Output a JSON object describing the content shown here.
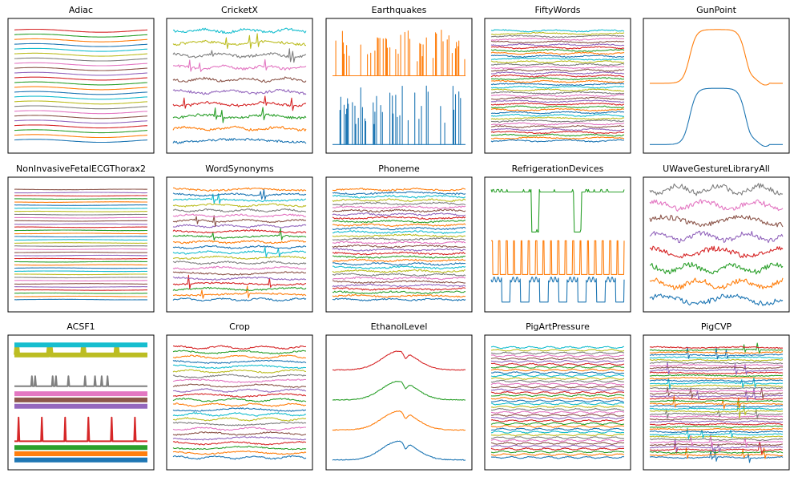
{
  "figure": {
    "grid": "3x5",
    "palette": [
      "#1f77b4",
      "#ff7f0e",
      "#2ca02c",
      "#d62728",
      "#9467bd",
      "#8c564b",
      "#e377c2",
      "#7f7f7f",
      "#bcbd22",
      "#17becf"
    ]
  },
  "chart_data": [
    {
      "type": "line",
      "title": "Adiac",
      "style": "sine",
      "n_series": 24,
      "amplitude": 0.012,
      "noise": 0.0,
      "spikes": 0
    },
    {
      "type": "line",
      "title": "CricketX",
      "style": "noisy",
      "n_series": 10,
      "amplitude": 0.012,
      "noise": 0.01,
      "spikes": 3
    },
    {
      "type": "line",
      "title": "Earthquakes",
      "style": "spike-bars",
      "n_series": 2,
      "amplitude": 1.0,
      "noise": 0.0,
      "spikes": 40
    },
    {
      "type": "line",
      "title": "FiftyWords",
      "style": "noisy",
      "n_series": 40,
      "amplitude": 0.006,
      "noise": 0.004,
      "spikes": 0
    },
    {
      "type": "line",
      "title": "GunPoint",
      "style": "plateau",
      "n_series": 2,
      "amplitude": 0.4,
      "noise": 0.0,
      "spikes": 0
    },
    {
      "type": "line",
      "title": "NonInvasiveFetalECGThorax2",
      "style": "flat",
      "n_series": 36,
      "amplitude": 0.002,
      "noise": 0.001,
      "spikes": 0
    },
    {
      "type": "line",
      "title": "WordSynonyms",
      "style": "noisy",
      "n_series": 22,
      "amplitude": 0.008,
      "noise": 0.006,
      "spikes": 2
    },
    {
      "type": "line",
      "title": "Phoneme",
      "style": "dense",
      "n_series": 32,
      "amplitude": 0.006,
      "noise": 0.006,
      "spikes": 0
    },
    {
      "type": "line",
      "title": "RefrigerationDevices",
      "style": "square",
      "n_series": 3,
      "amplitude": 0.2,
      "noise": 0.0,
      "spikes": 0
    },
    {
      "type": "line",
      "title": "UWaveGestureLibraryAll",
      "style": "noisy",
      "n_series": 8,
      "amplitude": 0.03,
      "noise": 0.02,
      "spikes": 0
    },
    {
      "type": "line",
      "title": "ACSF1",
      "style": "bands",
      "n_series": 10,
      "amplitude": 0.0,
      "noise": 0.0,
      "spikes": 0
    },
    {
      "type": "line",
      "title": "Crop",
      "style": "noisy",
      "n_series": 24,
      "amplitude": 0.01,
      "noise": 0.005,
      "spikes": 0
    },
    {
      "type": "line",
      "title": "EthanolLevel",
      "style": "bell",
      "n_series": 4,
      "amplitude": 0.15,
      "noise": 0.006,
      "spikes": 0
    },
    {
      "type": "line",
      "title": "PigArtPressure",
      "style": "wave",
      "n_series": 40,
      "amplitude": 0.006,
      "noise": 0.003,
      "spikes": 0
    },
    {
      "type": "line",
      "title": "PigCVP",
      "style": "dense",
      "n_series": 44,
      "amplitude": 0.004,
      "noise": 0.004,
      "spikes": 3
    }
  ]
}
